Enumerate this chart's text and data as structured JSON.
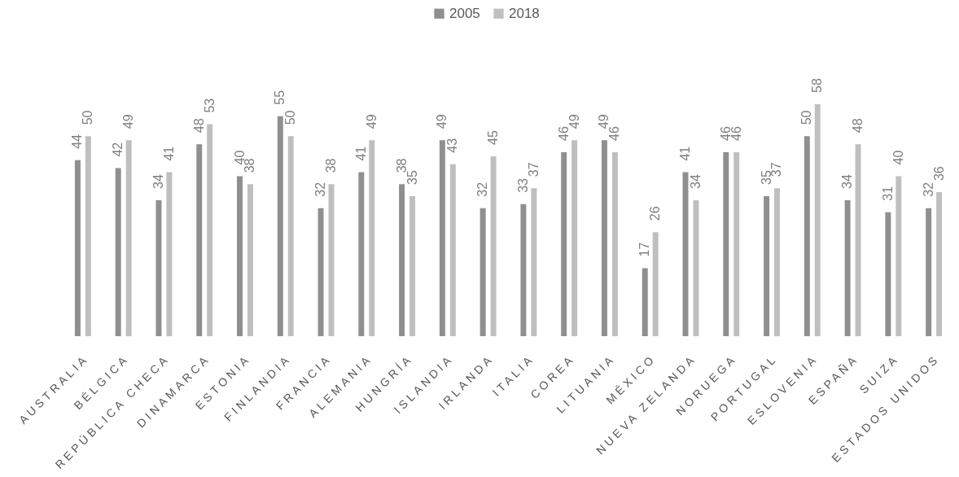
{
  "chart_data": {
    "type": "bar",
    "categories": [
      "AUSTRALIA",
      "BÉLGICA",
      "REPÚBLICA CHECA",
      "DINAMARCA",
      "ESTONIA",
      "FINLANDIA",
      "FRANCIA",
      "ALEMANIA",
      "HUNGRÍA",
      "ISLANDIA",
      "IRLANDA",
      "ITALIA",
      "COREA",
      "LITUANIA",
      "MÉXICO",
      "NUEVA ZELANDA",
      "NORUEGA",
      "PORTUGAL",
      "ESLOVENIA",
      "ESPAÑA",
      "SUIZA",
      "ESTADOS UNIDOS"
    ],
    "series": [
      {
        "name": "2005",
        "color": "#8f8f8f",
        "values": [
          44,
          42,
          34,
          48,
          40,
          55,
          32,
          41,
          38,
          49,
          32,
          33,
          46,
          49,
          17,
          41,
          46,
          35,
          50,
          34,
          31,
          32
        ]
      },
      {
        "name": "2018",
        "color": "#bfbfbf",
        "values": [
          50,
          49,
          41,
          53,
          38,
          50,
          38,
          49,
          35,
          43,
          45,
          37,
          49,
          46,
          26,
          34,
          46,
          37,
          58,
          48,
          40,
          36
        ]
      }
    ],
    "tick_labels": "x",
    "data_labels": true,
    "legend": "top"
  }
}
